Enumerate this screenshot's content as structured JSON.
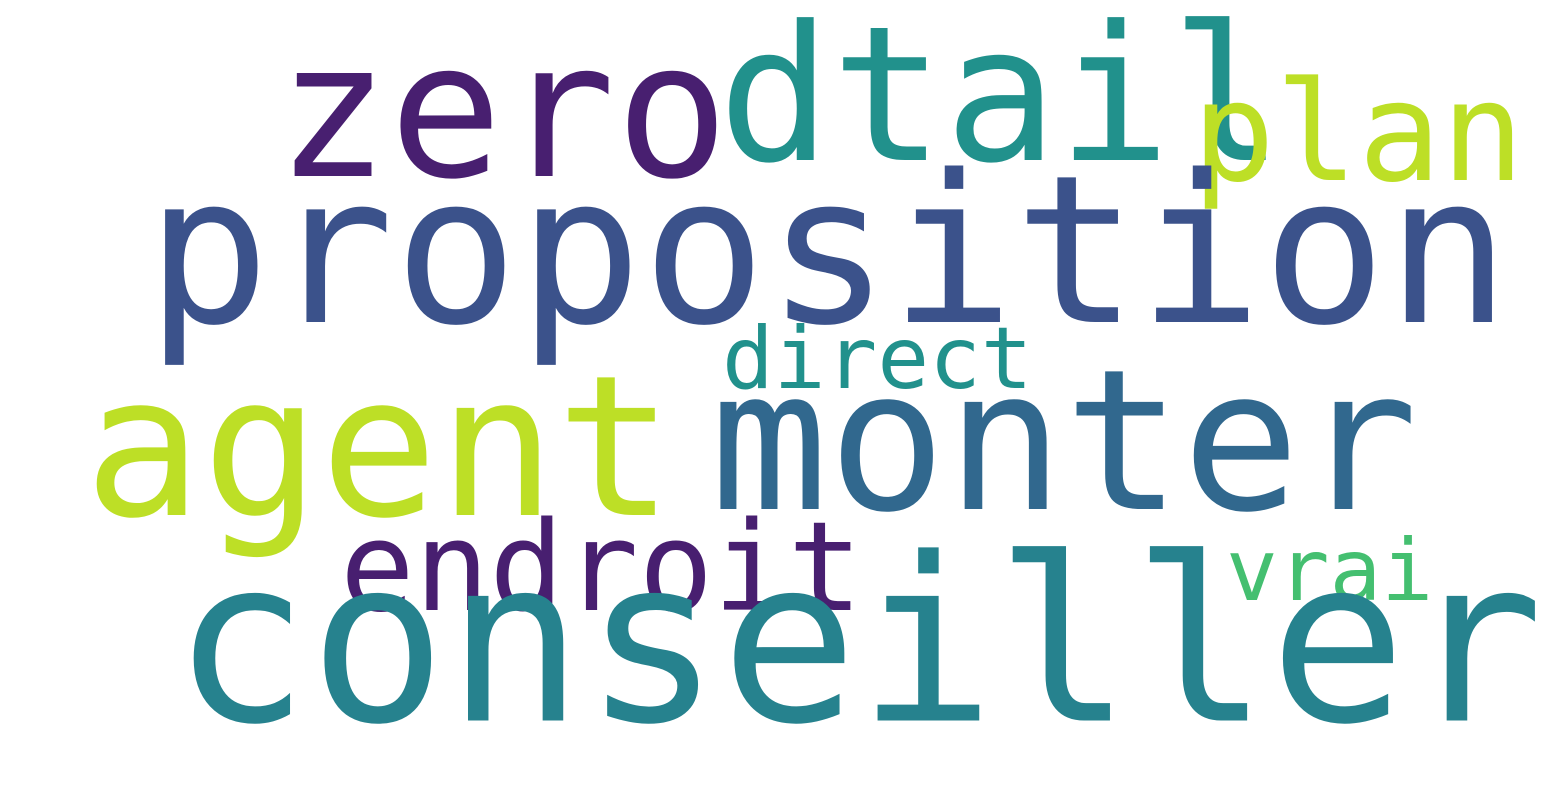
{
  "word_cloud": {
    "words": [
      {
        "text": "zero",
        "color": "#481f70"
      },
      {
        "text": "dtail",
        "color": "#21918c"
      },
      {
        "text": "plan",
        "color": "#bddf26"
      },
      {
        "text": "proposition",
        "color": "#3b528b"
      },
      {
        "text": "direct",
        "color": "#21918c"
      },
      {
        "text": "agent",
        "color": "#bddf26"
      },
      {
        "text": "monter",
        "color": "#31688e"
      },
      {
        "text": "endroit",
        "color": "#481f70"
      },
      {
        "text": "vrai",
        "color": "#44bf70"
      },
      {
        "text": "conseiller",
        "color": "#26828e"
      }
    ]
  }
}
